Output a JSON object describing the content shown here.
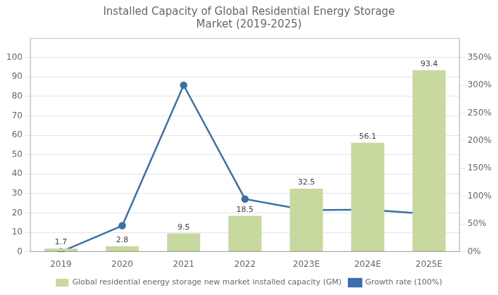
{
  "chart_data": {
    "type": "bar",
    "title": [
      "Installed Capacity of Global Residential Energy Storage",
      "Market (2019-2025)"
    ],
    "categories": [
      "2019",
      "2020",
      "2021",
      "2022",
      "2023E",
      "2024E",
      "2025E"
    ],
    "series": [
      {
        "name": "Global residential energy storage new market installed capacity (GM)",
        "type": "bar",
        "color": "#c8d9a0",
        "values": [
          1.7,
          2.8,
          9.5,
          18.5,
          32.5,
          56.1,
          93.4
        ],
        "data_labels": true
      },
      {
        "name": "Growth rate (100%)",
        "type": "line",
        "color": "#3a6faa",
        "marker": "circle",
        "axis": "y2",
        "values": [
          0.0,
          0.47,
          3.0,
          0.95,
          0.75,
          0.76,
          0.68
        ]
      }
    ],
    "ylim": [
      0,
      110
    ],
    "yticks": [
      0,
      10,
      20,
      30,
      40,
      50,
      60,
      70,
      80,
      90,
      100
    ],
    "y2lim": [
      0,
      3.85
    ],
    "y2ticks": [
      {
        "value": 0.0,
        "label": "0%"
      },
      {
        "value": 0.5,
        "label": "50%"
      },
      {
        "value": 1.0,
        "label": "100%"
      },
      {
        "value": 1.5,
        "label": "150%"
      },
      {
        "value": 2.0,
        "label": "200%"
      },
      {
        "value": 2.5,
        "label": "250%"
      },
      {
        "value": 3.0,
        "label": "300%"
      },
      {
        "value": 3.5,
        "label": "350%"
      }
    ],
    "grid": true,
    "legend": "bottom"
  }
}
